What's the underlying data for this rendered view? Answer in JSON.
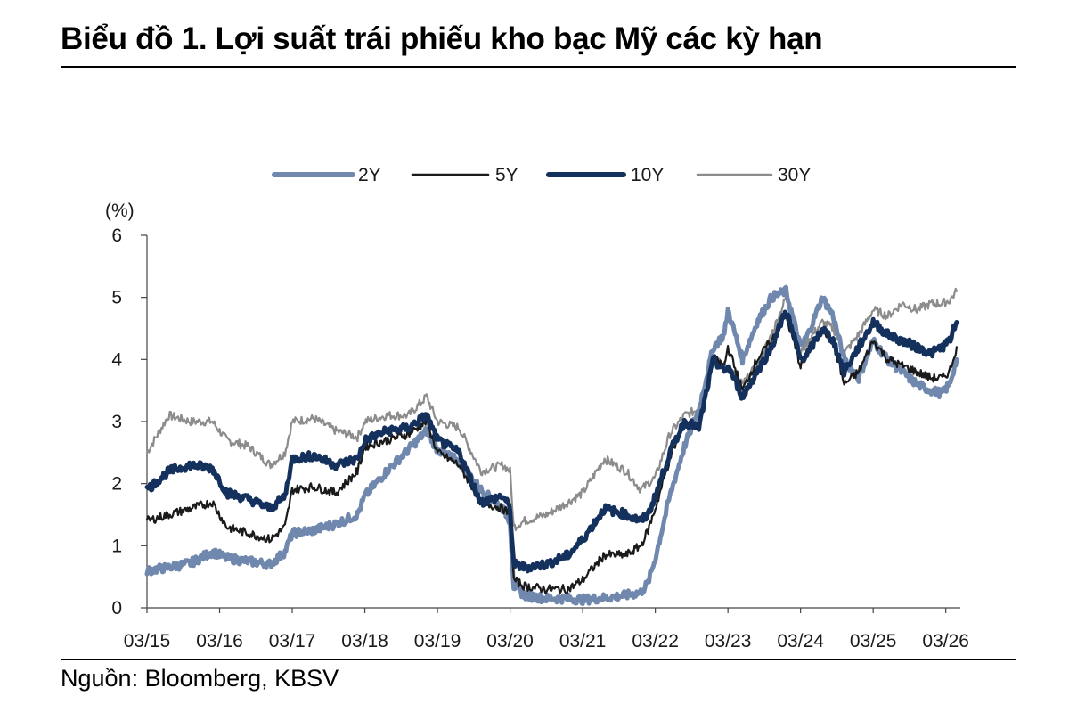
{
  "page": {
    "title": "Biểu đồ 1. Lợi suất trái phiếu kho bạc Mỹ các kỳ hạn",
    "source": "Nguồn: Bloomberg, KBSV"
  },
  "chart_data": {
    "type": "line",
    "title": "Biểu đồ 1. Lợi suất trái phiếu kho bạc Mỹ các kỳ hạn",
    "ylabel": "(%)",
    "xlabel": "",
    "ylim": [
      0,
      6
    ],
    "yticks": [
      0,
      1,
      2,
      3,
      4,
      5,
      6
    ],
    "xlim": [
      2015.0,
      2026.2
    ],
    "xticks": [
      2015,
      2016,
      2017,
      2018,
      2019,
      2020,
      2021,
      2022,
      2023,
      2024,
      2025,
      2026
    ],
    "xtick_labels": [
      "03/15",
      "03/16",
      "03/17",
      "03/18",
      "03/19",
      "03/20",
      "03/21",
      "03/22",
      "03/23",
      "03/24",
      "03/25",
      "03/26"
    ],
    "grid": false,
    "legend_position": "top-center",
    "series": [
      {
        "name": "2Y",
        "color": "#7088ad",
        "width": "thick",
        "x": [
          2015.0,
          2015.3,
          2015.6,
          2015.9,
          2016.1,
          2016.4,
          2016.7,
          2016.9,
          2017.0,
          2017.3,
          2017.6,
          2017.9,
          2018.0,
          2018.3,
          2018.6,
          2018.85,
          2019.0,
          2019.3,
          2019.6,
          2019.9,
          2020.0,
          2020.05,
          2020.2,
          2020.5,
          2020.8,
          2021.0,
          2021.3,
          2021.6,
          2021.8,
          2021.9,
          2022.0,
          2022.2,
          2022.4,
          2022.6,
          2022.8,
          2022.95,
          2023.0,
          2023.2,
          2023.4,
          2023.6,
          2023.8,
          2024.0,
          2024.1,
          2024.3,
          2024.45,
          2024.6,
          2024.8,
          2025.0,
          2025.2,
          2025.4,
          2025.6,
          2025.8,
          2025.95,
          2026.05,
          2026.15
        ],
        "y": [
          0.6,
          0.65,
          0.72,
          0.9,
          0.8,
          0.75,
          0.7,
          0.9,
          1.2,
          1.25,
          1.35,
          1.5,
          1.8,
          2.2,
          2.55,
          2.85,
          2.55,
          2.35,
          1.9,
          1.6,
          1.4,
          0.35,
          0.2,
          0.15,
          0.15,
          0.13,
          0.16,
          0.2,
          0.25,
          0.4,
          0.8,
          1.8,
          2.6,
          3.2,
          4.2,
          4.4,
          4.8,
          4.0,
          4.6,
          5.0,
          5.1,
          4.2,
          4.4,
          5.0,
          4.7,
          4.0,
          3.7,
          4.3,
          4.0,
          3.8,
          3.6,
          3.5,
          3.45,
          3.6,
          4.0
        ]
      },
      {
        "name": "5Y",
        "color": "#1a1a1a",
        "width": "thin",
        "x": [
          2015.0,
          2015.3,
          2015.6,
          2015.9,
          2016.1,
          2016.4,
          2016.7,
          2016.9,
          2017.0,
          2017.3,
          2017.6,
          2017.9,
          2018.0,
          2018.3,
          2018.6,
          2018.85,
          2019.0,
          2019.3,
          2019.6,
          2019.9,
          2020.0,
          2020.05,
          2020.2,
          2020.5,
          2020.8,
          2021.0,
          2021.3,
          2021.6,
          2021.8,
          2021.9,
          2022.0,
          2022.2,
          2022.4,
          2022.6,
          2022.8,
          2022.95,
          2023.0,
          2023.2,
          2023.4,
          2023.6,
          2023.8,
          2024.0,
          2024.1,
          2024.3,
          2024.45,
          2024.6,
          2024.8,
          2025.0,
          2025.2,
          2025.4,
          2025.6,
          2025.8,
          2025.95,
          2026.05,
          2026.15
        ],
        "y": [
          1.4,
          1.5,
          1.6,
          1.7,
          1.3,
          1.2,
          1.1,
          1.3,
          1.9,
          1.95,
          1.85,
          2.2,
          2.6,
          2.7,
          2.8,
          3.0,
          2.5,
          2.3,
          1.7,
          1.6,
          1.5,
          0.45,
          0.35,
          0.3,
          0.3,
          0.45,
          0.85,
          0.85,
          1.0,
          1.25,
          1.6,
          2.4,
          3.0,
          2.9,
          4.0,
          3.9,
          4.2,
          3.5,
          4.0,
          4.3,
          4.7,
          3.9,
          4.1,
          4.5,
          4.3,
          3.6,
          3.8,
          4.3,
          4.0,
          3.9,
          3.8,
          3.7,
          3.7,
          3.8,
          4.2
        ]
      },
      {
        "name": "10Y",
        "color": "#14305c",
        "width": "thick",
        "x": [
          2015.0,
          2015.3,
          2015.6,
          2015.9,
          2016.1,
          2016.4,
          2016.7,
          2016.9,
          2017.0,
          2017.3,
          2017.6,
          2017.9,
          2018.0,
          2018.3,
          2018.6,
          2018.85,
          2019.0,
          2019.3,
          2019.6,
          2019.9,
          2020.0,
          2020.05,
          2020.2,
          2020.5,
          2020.8,
          2021.0,
          2021.3,
          2021.6,
          2021.8,
          2021.9,
          2022.0,
          2022.2,
          2022.4,
          2022.6,
          2022.8,
          2022.95,
          2023.0,
          2023.2,
          2023.4,
          2023.6,
          2023.8,
          2024.0,
          2024.1,
          2024.3,
          2024.45,
          2024.6,
          2024.8,
          2025.0,
          2025.2,
          2025.4,
          2025.6,
          2025.8,
          2025.95,
          2026.05,
          2026.15
        ],
        "y": [
          1.9,
          2.2,
          2.3,
          2.25,
          1.85,
          1.75,
          1.6,
          1.8,
          2.4,
          2.45,
          2.3,
          2.4,
          2.7,
          2.85,
          2.9,
          3.1,
          2.7,
          2.5,
          1.7,
          1.8,
          1.6,
          0.7,
          0.65,
          0.7,
          0.85,
          1.1,
          1.6,
          1.5,
          1.4,
          1.5,
          1.8,
          2.5,
          3.0,
          2.9,
          4.0,
          3.8,
          3.9,
          3.4,
          3.8,
          4.2,
          4.8,
          4.0,
          4.1,
          4.5,
          4.3,
          3.8,
          4.2,
          4.6,
          4.4,
          4.3,
          4.2,
          4.1,
          4.2,
          4.3,
          4.6
        ]
      },
      {
        "name": "30Y",
        "color": "#8c8c8c",
        "width": "thin",
        "x": [
          2015.0,
          2015.3,
          2015.6,
          2015.9,
          2016.1,
          2016.4,
          2016.7,
          2016.9,
          2017.0,
          2017.3,
          2017.6,
          2017.9,
          2018.0,
          2018.3,
          2018.6,
          2018.85,
          2019.0,
          2019.3,
          2019.6,
          2019.9,
          2020.0,
          2020.05,
          2020.2,
          2020.5,
          2020.8,
          2021.0,
          2021.3,
          2021.6,
          2021.8,
          2021.9,
          2022.0,
          2022.2,
          2022.4,
          2022.6,
          2022.8,
          2022.95,
          2023.0,
          2023.2,
          2023.4,
          2023.6,
          2023.8,
          2024.0,
          2024.1,
          2024.3,
          2024.45,
          2024.6,
          2024.8,
          2025.0,
          2025.2,
          2025.4,
          2025.6,
          2025.8,
          2025.95,
          2026.05,
          2026.15
        ],
        "y": [
          2.5,
          3.1,
          3.0,
          3.0,
          2.7,
          2.6,
          2.3,
          2.5,
          3.0,
          3.05,
          2.85,
          2.75,
          3.0,
          3.1,
          3.1,
          3.4,
          3.0,
          2.9,
          2.2,
          2.3,
          2.2,
          1.3,
          1.4,
          1.5,
          1.7,
          1.85,
          2.4,
          2.2,
          1.9,
          2.0,
          2.1,
          2.8,
          3.1,
          3.2,
          4.0,
          3.9,
          3.9,
          3.6,
          3.9,
          4.4,
          5.0,
          4.1,
          4.3,
          4.6,
          4.5,
          4.1,
          4.4,
          4.8,
          4.7,
          4.9,
          4.8,
          4.9,
          4.9,
          4.95,
          5.1
        ]
      }
    ]
  }
}
